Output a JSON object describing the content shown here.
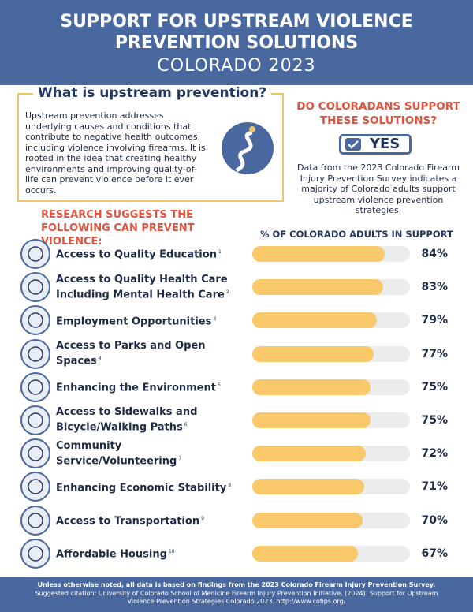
{
  "header": {
    "title": "SUPPORT FOR UPSTREAM VIOLENCE PREVENTION SOLUTIONS",
    "subtitle": "COLORADO 2023"
  },
  "intro": {
    "heading": "What is upstream prevention?",
    "body": "Upstream prevention addresses underlying causes and conditions that contribute to negative health outcomes, including violence involving firearms. It is rooted in the idea that creating healthy environments and improving quality-of-life can prevent violence before it ever occurs."
  },
  "support": {
    "heading": "DO COLORADANS SUPPORT THESE SOLUTIONS?",
    "badge": "YES",
    "body": "Data from the 2023 Colorado Firearm Injury Prevention Survey indicates a majority of Colorado adults support upstream violence prevention strategies."
  },
  "chart_data": {
    "type": "bar",
    "title": "RESEARCH SUGGESTS THE FOLLOWING CAN PREVENT VIOLENCE:",
    "xlabel": "% OF COLORADO ADULTS IN SUPPORT",
    "categories": [
      "Access to Quality Education",
      "Access to Quality Health Care Including Mental Health Care",
      "Employment Opportunities",
      "Access to Parks and Open Spaces",
      "Enhancing the Environment",
      "Access to Sidewalks and Bicycle/Walking Paths",
      "Community Service/Volunteering",
      "Enhancing Economic Stability",
      "Access to Transportation",
      "Affordable Housing"
    ],
    "footnotes": [
      "1",
      "2",
      "3",
      "4",
      "5",
      "6",
      "7",
      "8",
      "9",
      "10"
    ],
    "values": [
      84,
      83,
      79,
      77,
      75,
      75,
      72,
      71,
      70,
      67
    ],
    "value_labels": [
      "84%",
      "83%",
      "79%",
      "77%",
      "75%",
      "75%",
      "72%",
      "71%",
      "70%",
      "67%"
    ],
    "xlim": [
      0,
      100
    ],
    "color": "#f9c86b"
  },
  "footer": {
    "note": "Unless otherwise noted, all data is based on findings from the 2023 Colorado Firearm Injury Prevention Survey.",
    "citation": "Suggested citation: University of Colorado School of Medicine Firearm Injury Prevention Initiative. (2024). Support for Upstream Violence Prevention Strategies Colorado 2023. http://www.cofips.org/"
  }
}
